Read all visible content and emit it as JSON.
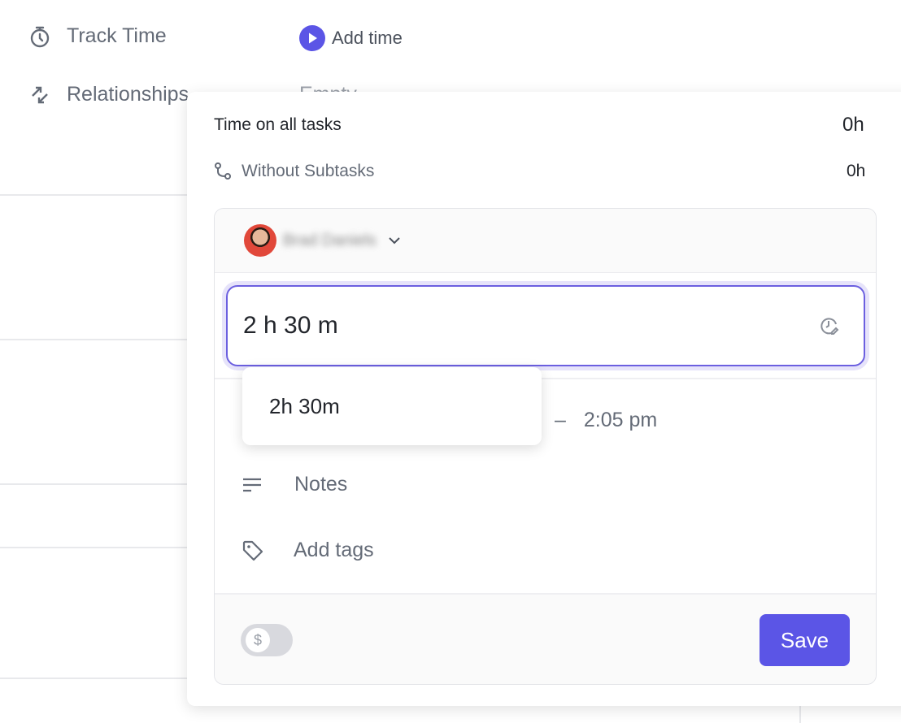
{
  "fields": {
    "track_time": {
      "label": "Track Time",
      "value": "Add time",
      "icon": "stopwatch-icon"
    },
    "relationships": {
      "label": "Relationships",
      "value": "Empty",
      "icon": "relationship-arrows-icon"
    }
  },
  "popover": {
    "total_label": "Time on all tasks",
    "total_value": "0h",
    "without_subtasks_label": "Without Subtasks",
    "without_subtasks_value": "0h",
    "user_name": "Brad Daniels",
    "duration_input": "2 h 30 m",
    "suggestion": "2h 30m",
    "time_range_sep": "–",
    "end_time": "2:05 pm",
    "notes_placeholder": "Notes",
    "tags_placeholder": "Add tags",
    "save_label": "Save",
    "billable": false
  },
  "colors": {
    "accent": "#5b55e6"
  }
}
